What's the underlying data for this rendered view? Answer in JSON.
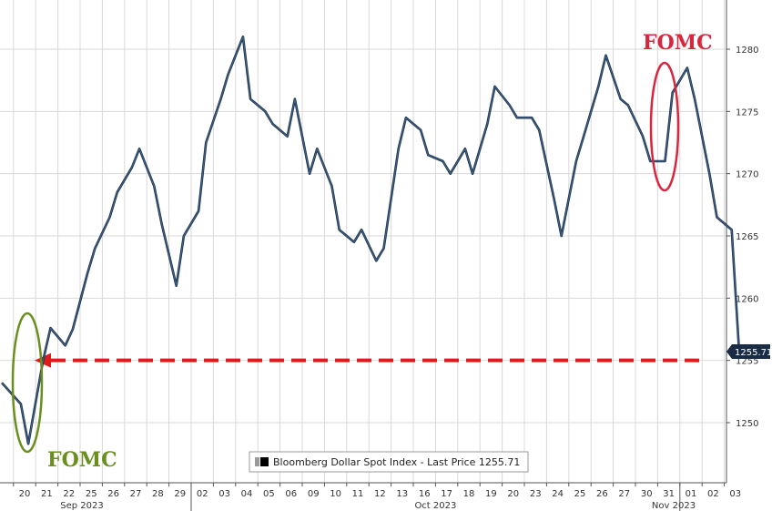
{
  "colors": {
    "series": "#3a5f8a",
    "series_dark": "#1b2a3a",
    "grid": "#d9d9d9",
    "dashed": "#e0191b",
    "fomc_green": "#6a8f1f",
    "fomc_red": "#d7263d",
    "last_box": "#1a2b44"
  },
  "chart_data": {
    "type": "line",
    "series": [
      {
        "name": "Bloomberg Dollar Spot Index - Last Price",
        "x": [
          "2023-09-19",
          "2023-09-20",
          "2023-09-20",
          "2023-09-21",
          "2023-09-21",
          "2023-09-22",
          "2023-09-22",
          "2023-09-25",
          "2023-09-25",
          "2023-09-26",
          "2023-09-26",
          "2023-09-27",
          "2023-09-27",
          "2023-09-28",
          "2023-09-28",
          "2023-09-29",
          "2023-09-29",
          "2023-10-02",
          "2023-10-02",
          "2023-10-03",
          "2023-10-03",
          "2023-10-04",
          "2023-10-04",
          "2023-10-05",
          "2023-10-05",
          "2023-10-06",
          "2023-10-06",
          "2023-10-09",
          "2023-10-09",
          "2023-10-10",
          "2023-10-10",
          "2023-10-11",
          "2023-10-11",
          "2023-10-12",
          "2023-10-12",
          "2023-10-13",
          "2023-10-13",
          "2023-10-16",
          "2023-10-16",
          "2023-10-17",
          "2023-10-17",
          "2023-10-18",
          "2023-10-18",
          "2023-10-19",
          "2023-10-19",
          "2023-10-20",
          "2023-10-20",
          "2023-10-23",
          "2023-10-23",
          "2023-10-24",
          "2023-10-24",
          "2023-10-25",
          "2023-10-25",
          "2023-10-26",
          "2023-10-26",
          "2023-10-27",
          "2023-10-27",
          "2023-10-30",
          "2023-10-30",
          "2023-10-31",
          "2023-10-31",
          "2023-11-01",
          "2023-11-01",
          "2023-11-02",
          "2023-11-02",
          "2023-11-03",
          "2023-11-03"
        ],
        "values": [
          1253.2,
          1251.5,
          1248.3,
          1255.0,
          1257.6,
          1256.2,
          1257.5,
          1262.0,
          1264.0,
          1266.5,
          1268.5,
          1270.5,
          1272.0,
          1269.0,
          1266.0,
          1261.0,
          1265.0,
          1267.0,
          1272.5,
          1276.0,
          1278.0,
          1281.0,
          1276.0,
          1275.0,
          1274.0,
          1273.0,
          1276.0,
          1270.0,
          1272.0,
          1269.0,
          1265.5,
          1264.5,
          1265.5,
          1263.0,
          1264.0,
          1272.0,
          1274.5,
          1273.5,
          1271.5,
          1271.0,
          1270.0,
          1272.0,
          1270.0,
          1274.0,
          1277.0,
          1275.5,
          1274.5,
          1274.5,
          1273.5,
          1268.0,
          1265.0,
          1271.0,
          1273.0,
          1277.0,
          1279.5,
          1276.0,
          1275.5,
          1273.0,
          1271.0,
          1271.0,
          1276.5,
          1278.5,
          1276.0,
          1270.0,
          1266.5,
          1265.5,
          1255.71
        ]
      }
    ],
    "x_tick_labels": [
      "20",
      "21",
      "22",
      "25",
      "26",
      "27",
      "28",
      "29",
      "02",
      "03",
      "04",
      "05",
      "06",
      "09",
      "10",
      "11",
      "12",
      "13",
      "16",
      "17",
      "18",
      "19",
      "20",
      "23",
      "24",
      "25",
      "26",
      "27",
      "30",
      "31",
      "01",
      "02",
      "03"
    ],
    "month_labels": [
      "Sep 2023",
      "Oct 2023",
      "Nov 2023"
    ],
    "y_tick_labels": [
      1250,
      1255,
      1260,
      1265,
      1270,
      1275,
      1280
    ],
    "ylim": [
      1245,
      1283
    ],
    "grid": true,
    "legend": {
      "placement": "bottom-center",
      "text": "Bloomberg Dollar Spot Index - Last Price 1255.71"
    },
    "last_price_label": "1255.71",
    "reference_line": {
      "value": 1255.0,
      "style": "dashed",
      "color": "#e0191b"
    },
    "annotations": [
      {
        "text": "FOMC",
        "date": "2023-09-20",
        "color": "#6a8f1f"
      },
      {
        "text": "FOMC",
        "date": "2023-11-01",
        "color": "#d7263d"
      }
    ]
  }
}
